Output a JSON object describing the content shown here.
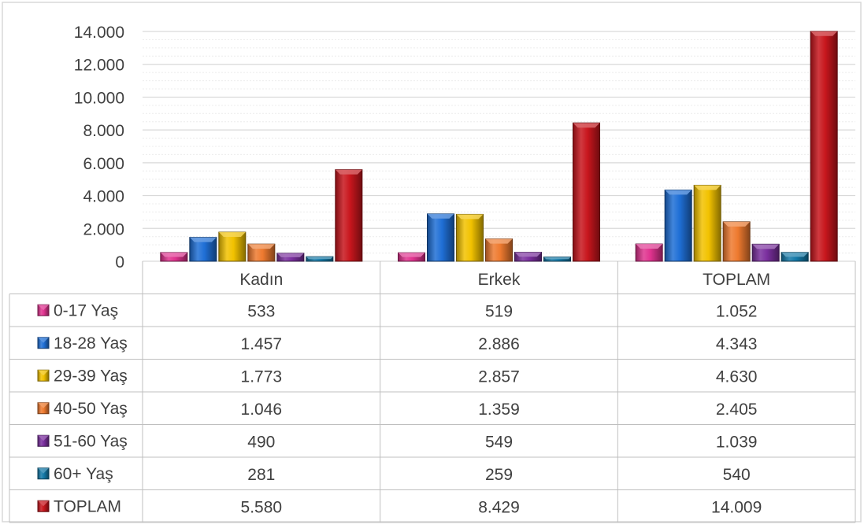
{
  "chart_data": {
    "type": "bar",
    "title": "",
    "xlabel": "",
    "ylabel": "",
    "categories": [
      "Kadın",
      "Erkek",
      "TOPLAM"
    ],
    "ylim": [
      0,
      14000
    ],
    "ytick_values": [
      0,
      2000,
      4000,
      6000,
      8000,
      10000,
      12000,
      14000
    ],
    "ytick_labels": [
      "0",
      "2.000",
      "4.000",
      "6.000",
      "8.000",
      "10.000",
      "12.000",
      "14.000"
    ],
    "grid": true,
    "legend_placement": "data-table-left",
    "series": [
      {
        "name": "0-17 Yaş",
        "color": "#E0338F",
        "values": [
          533,
          519,
          1052
        ],
        "labels": [
          "533",
          "519",
          "1.052"
        ]
      },
      {
        "name": "18-28 Yaş",
        "color": "#1F6FD6",
        "values": [
          1457,
          2886,
          4343
        ],
        "labels": [
          "1.457",
          "2.886",
          "4.343"
        ]
      },
      {
        "name": "29-39 Yaş",
        "color": "#F2C200",
        "values": [
          1773,
          2857,
          4630
        ],
        "labels": [
          "1.773",
          "2.857",
          "4.630"
        ]
      },
      {
        "name": "40-50 Yaş",
        "color": "#EE7A2F",
        "values": [
          1046,
          1359,
          2405
        ],
        "labels": [
          "1.046",
          "1.359",
          "2.405"
        ]
      },
      {
        "name": "51-60 Yaş",
        "color": "#7A2F9E",
        "values": [
          490,
          549,
          1039
        ],
        "labels": [
          "490",
          "549",
          "1.039"
        ]
      },
      {
        "name": "60+ Yaş",
        "color": "#1479A8",
        "values": [
          281,
          259,
          540
        ],
        "labels": [
          "281",
          "259",
          "540"
        ]
      },
      {
        "name": "TOPLAM",
        "color": "#C8161D",
        "values": [
          5580,
          8429,
          14009
        ],
        "labels": [
          "5.580",
          "8.429",
          "14.009"
        ]
      }
    ]
  }
}
